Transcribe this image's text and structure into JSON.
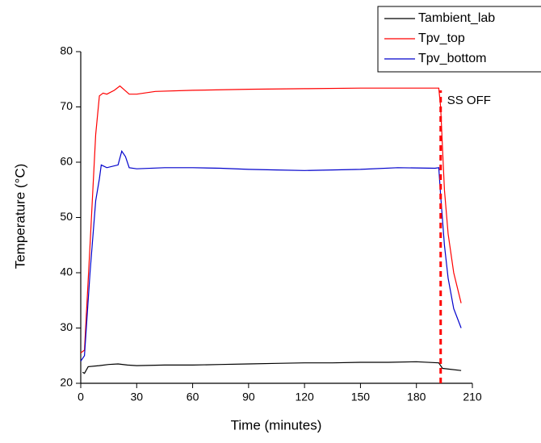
{
  "chart_data": {
    "type": "line",
    "xlabel": "Time (minutes)",
    "ylabel": "Temperature (°C)",
    "xlim": [
      0,
      210
    ],
    "ylim": [
      20,
      80
    ],
    "xticks": [
      0,
      30,
      60,
      90,
      120,
      150,
      180,
      210
    ],
    "yticks": [
      20,
      30,
      40,
      50,
      60,
      70,
      80
    ],
    "legend": "upper right",
    "annotation": {
      "text": "SS OFF",
      "x": 193,
      "color": "#ff0000"
    },
    "series": [
      {
        "name": "Tambient_lab",
        "color": "#000000",
        "x": [
          1,
          2,
          4,
          10,
          15,
          20,
          25,
          30,
          45,
          60,
          75,
          90,
          105,
          120,
          135,
          150,
          165,
          180,
          192,
          194,
          204
        ],
        "values": [
          22,
          21.8,
          23,
          23.2,
          23.4,
          23.5,
          23.3,
          23.2,
          23.3,
          23.3,
          23.4,
          23.5,
          23.6,
          23.7,
          23.7,
          23.8,
          23.8,
          23.9,
          23.7,
          22.7,
          22.3
        ]
      },
      {
        "name": "Tpv_top",
        "color": "#ff0000",
        "x": [
          0,
          2,
          5,
          8,
          10,
          12,
          14,
          18,
          21,
          23,
          26,
          30,
          40,
          60,
          90,
          120,
          150,
          180,
          192,
          193,
          195,
          197,
          200,
          204
        ],
        "values": [
          25.5,
          26,
          45,
          65,
          72,
          72.5,
          72.3,
          73,
          73.8,
          73.2,
          72.3,
          72.3,
          72.8,
          73,
          73.2,
          73.3,
          73.4,
          73.4,
          73.4,
          70,
          55,
          47,
          40,
          34.5
        ]
      },
      {
        "name": "Tpv_bottom",
        "color": "#0000cc",
        "x": [
          0,
          2,
          5,
          8,
          10,
          11,
          14,
          20,
          22,
          24,
          26,
          30,
          45,
          60,
          75,
          90,
          105,
          120,
          135,
          150,
          170,
          190,
          192,
          193,
          195,
          197,
          200,
          204
        ],
        "values": [
          24,
          25,
          40,
          53,
          57,
          59.5,
          59,
          59.5,
          62,
          61,
          59,
          58.8,
          59,
          59,
          58.9,
          58.7,
          58.6,
          58.5,
          58.6,
          58.7,
          59,
          58.9,
          59,
          54,
          45,
          39,
          33.5,
          30
        ]
      }
    ]
  }
}
